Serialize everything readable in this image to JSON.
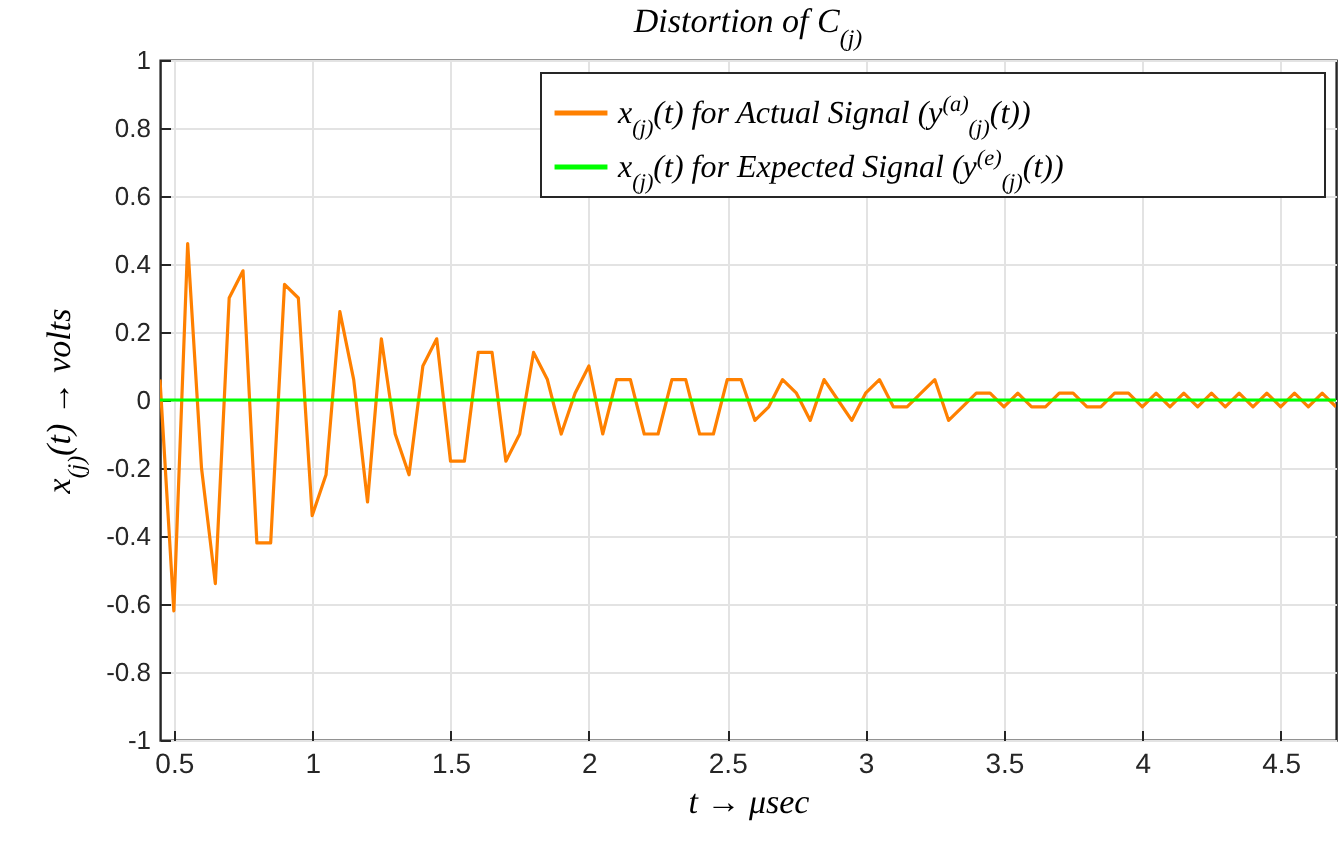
{
  "chart_data": {
    "type": "line",
    "title": "Distortion of C$_{(j)}$",
    "xlabel": "t → μsec",
    "ylabel": "x$_{(j)}$(t) → volts",
    "series": [
      {
        "name": "x$_{(j)}$(t) for Actual Signal (y$^{(a)}$$_{(j)}$(t))",
        "color": "#ff8000",
        "x": [
          0.45,
          0.5,
          0.55,
          0.6,
          0.65,
          0.7,
          0.75,
          0.8,
          0.85,
          0.9,
          0.95,
          1.0,
          1.05,
          1.1,
          1.15,
          1.2,
          1.25,
          1.3,
          1.35,
          1.4,
          1.45,
          1.5,
          1.55,
          1.6,
          1.65,
          1.7,
          1.75,
          1.8,
          1.85,
          1.9,
          1.95,
          2.0,
          2.05,
          2.1,
          2.15,
          2.2,
          2.25,
          2.3,
          2.35,
          2.4,
          2.45,
          2.5,
          2.55,
          2.6,
          2.65,
          2.7,
          2.75,
          2.8,
          2.85,
          2.9,
          2.95,
          3.0,
          3.05,
          3.1,
          3.15,
          3.2,
          3.25,
          3.3,
          3.35,
          3.4,
          3.45,
          3.5,
          3.55,
          3.6,
          3.65,
          3.7,
          3.75,
          3.8,
          3.85,
          3.9,
          3.95,
          4.0,
          4.05,
          4.1,
          4.15,
          4.2,
          4.25,
          4.3,
          4.35,
          4.4,
          4.45,
          4.5,
          4.55,
          4.6,
          4.65,
          4.7
        ],
        "values": [
          0.06,
          -0.62,
          0.46,
          -0.2,
          -0.54,
          0.3,
          0.38,
          -0.42,
          -0.42,
          0.34,
          0.3,
          -0.34,
          -0.22,
          0.26,
          0.06,
          -0.3,
          0.18,
          -0.1,
          -0.22,
          0.1,
          0.18,
          -0.18,
          -0.18,
          0.14,
          0.14,
          -0.18,
          -0.1,
          0.14,
          0.06,
          -0.1,
          0.02,
          0.1,
          -0.1,
          0.06,
          0.06,
          -0.1,
          -0.1,
          0.06,
          0.06,
          -0.1,
          -0.1,
          0.06,
          0.06,
          -0.06,
          -0.02,
          0.06,
          0.02,
          -0.06,
          0.06,
          0,
          -0.06,
          0.02,
          0.06,
          -0.02,
          -0.02,
          0.02,
          0.06,
          -0.06,
          -0.02,
          0.02,
          0.02,
          -0.02,
          0.02,
          -0.02,
          -0.02,
          0.02,
          0.02,
          -0.02,
          -0.02,
          0.02,
          0.02,
          -0.02,
          0.02,
          -0.02,
          0.02,
          -0.02,
          0.02,
          -0.02,
          0.02,
          -0.02,
          0.02,
          -0.02,
          0.02,
          -0.02,
          0.02,
          -0.02
        ]
      },
      {
        "name": "x$_{(j)}$(t) for Expected Signal (y$^{(e)}$$_{(j)}$(t))",
        "color": "#00ff00",
        "x": [
          0.45,
          4.7
        ],
        "values": [
          0,
          0
        ]
      }
    ],
    "xlim": [
      0.45,
      4.7
    ],
    "xticks": [
      0.5,
      1,
      1.5,
      2,
      2.5,
      3,
      3.5,
      4,
      4.5
    ],
    "ylim": [
      -1,
      1
    ],
    "yticks": [
      -1,
      -0.8,
      -0.6,
      -0.4,
      -0.2,
      0,
      0.2,
      0.4,
      0.6,
      0.8,
      1
    ],
    "grid": true,
    "legend": "top right",
    "marker": "none",
    "line_style": "solid"
  }
}
